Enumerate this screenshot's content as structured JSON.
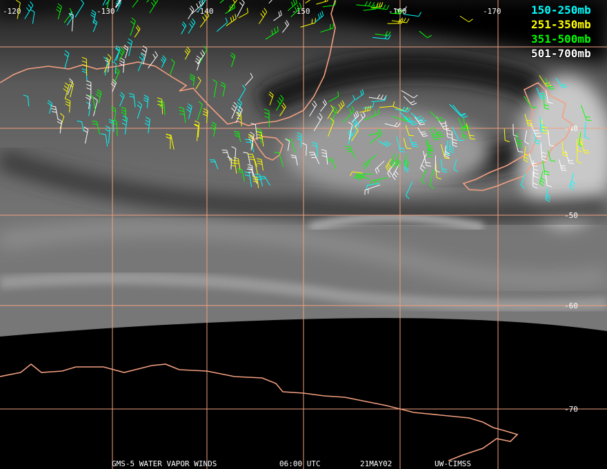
{
  "map": {
    "grid": {
      "longitude_labels": [
        "-120",
        "-130",
        "-140",
        "-150",
        "-160",
        "-170"
      ],
      "latitude_labels": [
        "-40",
        "-50",
        "-60",
        "-70"
      ]
    },
    "legend": [
      {
        "label": "150-250mb",
        "color": "#00ffff"
      },
      {
        "label": "251-350mb",
        "color": "#ffff00"
      },
      {
        "label": "351-500mb",
        "color": "#00ff00"
      },
      {
        "label": "501-700mb",
        "color": "#ffffff"
      }
    ],
    "footer": {
      "satellite": "GMS-5 WATER VAPOR WINDS",
      "time": "06:00 UTC",
      "date": "21MAY02",
      "source": "UW-CIMSS"
    }
  }
}
